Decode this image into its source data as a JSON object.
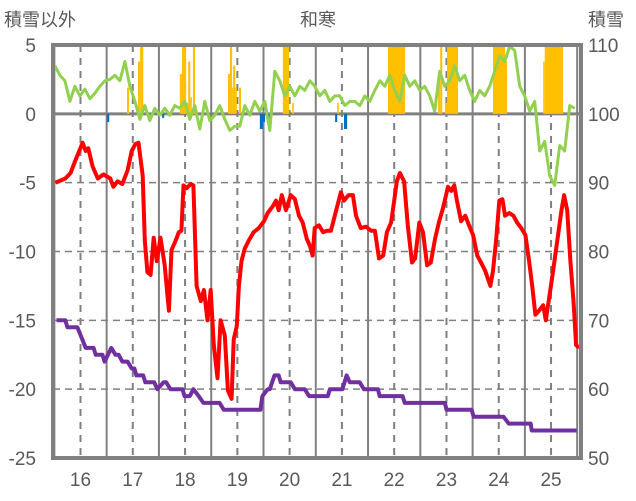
{
  "chart_data": {
    "type": "line",
    "title": "和寒",
    "ylabel_left": "積雪以外",
    "ylabel_right": "積雪",
    "xlim": [
      15.474,
      25.573
    ],
    "ylim_left": [
      -25,
      5
    ],
    "ylim_right": [
      50,
      110
    ],
    "x_ticks": [
      "16",
      "17",
      "18",
      "19",
      "20",
      "21",
      "22",
      "23",
      "24",
      "25"
    ],
    "x_tick_values": [
      16,
      17,
      18,
      19,
      20,
      21,
      22,
      23,
      24,
      25
    ],
    "y_ticks_left": [
      "5",
      "0",
      "-5",
      "-10",
      "-15",
      "-20",
      "-25"
    ],
    "y_tick_values_left": [
      5,
      0,
      -5,
      -10,
      -15,
      -20,
      -25
    ],
    "y_ticks_right": [
      "110",
      "100",
      "90",
      "80",
      "70",
      "60",
      "50"
    ],
    "y_tick_values_right": [
      110,
      100,
      90,
      80,
      70,
      60,
      50
    ],
    "grid": true,
    "colors": {
      "temp": "#FF0000",
      "wind": "#92D050",
      "snow_depth": "#7030A0",
      "precip_pos": "#FFC000",
      "precip_neg": "#0070C0",
      "axis": "#808080",
      "text": "#595959"
    },
    "series": [
      {
        "name": "red",
        "axis": "left",
        "points": [
          [
            15.52,
            -5.0
          ],
          [
            15.71,
            -4.7
          ],
          [
            15.81,
            -4.3
          ],
          [
            15.9,
            -3.4
          ],
          [
            16.04,
            -2.1
          ],
          [
            16.1,
            -2.7
          ],
          [
            16.15,
            -2.5
          ],
          [
            16.23,
            -3.8
          ],
          [
            16.33,
            -4.7
          ],
          [
            16.44,
            -4.4
          ],
          [
            16.57,
            -4.7
          ],
          [
            16.63,
            -5.3
          ],
          [
            16.71,
            -4.9
          ],
          [
            16.8,
            -5.1
          ],
          [
            16.9,
            -4.1
          ],
          [
            16.98,
            -2.7
          ],
          [
            17.05,
            -2.2
          ],
          [
            17.11,
            -2.1
          ],
          [
            17.19,
            -4.5
          ],
          [
            17.23,
            -9.2
          ],
          [
            17.28,
            -11.5
          ],
          [
            17.34,
            -11.7
          ],
          [
            17.4,
            -9.0
          ],
          [
            17.46,
            -10.7
          ],
          [
            17.53,
            -9.0
          ],
          [
            17.61,
            -11.0
          ],
          [
            17.69,
            -14.3
          ],
          [
            17.74,
            -9.9
          ],
          [
            17.82,
            -9.2
          ],
          [
            17.88,
            -8.6
          ],
          [
            17.93,
            -8.5
          ],
          [
            17.97,
            -5.2
          ],
          [
            18.03,
            -5.4
          ],
          [
            18.11,
            -5.1
          ],
          [
            18.16,
            -5.2
          ],
          [
            18.22,
            -12.5
          ],
          [
            18.3,
            -13.6
          ],
          [
            18.36,
            -12.8
          ],
          [
            18.43,
            -15.0
          ],
          [
            18.49,
            -12.8
          ],
          [
            18.55,
            -16.8
          ],
          [
            18.62,
            -19.2
          ],
          [
            18.68,
            -15.0
          ],
          [
            18.76,
            -16.1
          ],
          [
            18.82,
            -20.1
          ],
          [
            18.89,
            -20.7
          ],
          [
            18.93,
            -16.4
          ],
          [
            18.99,
            -15.4
          ],
          [
            19.03,
            -12.5
          ],
          [
            19.08,
            -10.7
          ],
          [
            19.14,
            -9.8
          ],
          [
            19.22,
            -9.2
          ],
          [
            19.31,
            -8.6
          ],
          [
            19.41,
            -8.3
          ],
          [
            19.51,
            -7.8
          ],
          [
            19.58,
            -7.2
          ],
          [
            19.68,
            -6.7
          ],
          [
            19.74,
            -6.3
          ],
          [
            19.79,
            -7.0
          ],
          [
            19.85,
            -5.9
          ],
          [
            19.93,
            -7.0
          ],
          [
            20.02,
            -5.9
          ],
          [
            20.1,
            -6.2
          ],
          [
            20.18,
            -7.4
          ],
          [
            20.25,
            -7.9
          ],
          [
            20.33,
            -9.1
          ],
          [
            20.39,
            -9.6
          ],
          [
            20.44,
            -10.3
          ],
          [
            20.48,
            -8.3
          ],
          [
            20.56,
            -8.1
          ],
          [
            20.64,
            -8.6
          ],
          [
            20.71,
            -8.5
          ],
          [
            20.79,
            -8.5
          ],
          [
            20.89,
            -7.0
          ],
          [
            20.98,
            -5.7
          ],
          [
            21.04,
            -6.3
          ],
          [
            21.13,
            -5.9
          ],
          [
            21.21,
            -5.9
          ],
          [
            21.27,
            -7.4
          ],
          [
            21.36,
            -8.3
          ],
          [
            21.46,
            -8.2
          ],
          [
            21.56,
            -8.5
          ],
          [
            21.63,
            -8.5
          ],
          [
            21.71,
            -10.5
          ],
          [
            21.79,
            -10.3
          ],
          [
            21.86,
            -8.6
          ],
          [
            21.94,
            -7.9
          ],
          [
            22.0,
            -6.3
          ],
          [
            22.05,
            -4.9
          ],
          [
            22.11,
            -4.3
          ],
          [
            22.19,
            -4.9
          ],
          [
            22.26,
            -8.1
          ],
          [
            22.34,
            -10.8
          ],
          [
            22.4,
            -10.5
          ],
          [
            22.48,
            -7.9
          ],
          [
            22.55,
            -8.6
          ],
          [
            22.63,
            -11.0
          ],
          [
            22.7,
            -10.8
          ],
          [
            22.78,
            -9.1
          ],
          [
            22.86,
            -7.8
          ],
          [
            22.93,
            -6.9
          ],
          [
            23.03,
            -5.3
          ],
          [
            23.09,
            -5.6
          ],
          [
            23.15,
            -5.2
          ],
          [
            23.2,
            -6.3
          ],
          [
            23.28,
            -7.8
          ],
          [
            23.36,
            -7.4
          ],
          [
            23.43,
            -8.1
          ],
          [
            23.51,
            -8.8
          ],
          [
            23.59,
            -10.3
          ],
          [
            23.66,
            -10.8
          ],
          [
            23.74,
            -11.4
          ],
          [
            23.84,
            -12.5
          ],
          [
            23.89,
            -11.4
          ],
          [
            23.95,
            -9.2
          ],
          [
            24.01,
            -6.3
          ],
          [
            24.07,
            -6.2
          ],
          [
            24.12,
            -7.4
          ],
          [
            24.2,
            -7.2
          ],
          [
            24.28,
            -7.4
          ],
          [
            24.35,
            -7.9
          ],
          [
            24.43,
            -8.3
          ],
          [
            24.51,
            -8.8
          ],
          [
            24.58,
            -10.7
          ],
          [
            24.64,
            -12.5
          ],
          [
            24.7,
            -14.6
          ],
          [
            24.77,
            -14.3
          ],
          [
            24.85,
            -13.9
          ],
          [
            24.9,
            -15.0
          ],
          [
            24.97,
            -13.2
          ],
          [
            25.04,
            -11.4
          ],
          [
            25.12,
            -9.2
          ],
          [
            25.2,
            -7.0
          ],
          [
            25.25,
            -5.9
          ],
          [
            25.31,
            -7.0
          ],
          [
            25.37,
            -10.7
          ],
          [
            25.43,
            -13.6
          ],
          [
            25.48,
            -16.8
          ],
          [
            25.54,
            -17.0
          ]
        ]
      },
      {
        "name": "green",
        "axis": "left",
        "x_start": 15.51,
        "x_step": 0.0956,
        "values": [
          3.5,
          2.8,
          2.4,
          0.9,
          2.0,
          1.3,
          1.8,
          1.1,
          1.5,
          2.0,
          2.4,
          2.5,
          2.8,
          2.4,
          3.8,
          2.0,
          0.9,
          -0.4,
          0.6,
          -0.5,
          0.4,
          -0.1,
          0.4,
          -0.1,
          0.6,
          0.4,
          0.9,
          -0.4,
          0.6,
          -1.1,
          0.9,
          -0.5,
          -0.1,
          0.6,
          -0.4,
          -1.2,
          -0.9,
          -0.9,
          0.6,
          -0.1,
          0.9,
          0.2,
          0.9,
          -1.2,
          3.1,
          2.4,
          1.3,
          2.0,
          1.3,
          2.0,
          1.7,
          2.4,
          2.0,
          1.3,
          1.7,
          0.9,
          1.3,
          1.3,
          0.6,
          0.9,
          0.9,
          0.6,
          1.3,
          0.9,
          1.7,
          2.4,
          2.0,
          2.8,
          1.7,
          0.9,
          2.8,
          2.0,
          2.4,
          1.7,
          2.0,
          1.3,
          0.2,
          3.1,
          2.0,
          2.4,
          3.5,
          2.4,
          2.8,
          1.7,
          0.9,
          1.7,
          1.3,
          2.0,
          3.1,
          4.2,
          3.8,
          4.9,
          4.6,
          2.0,
          1.3,
          0.2,
          0.9,
          -2.7,
          -2.0,
          -4.5,
          -5.2,
          -2.3,
          -2.7,
          0.6,
          0.4
        ]
      },
      {
        "name": "purple",
        "axis": "right",
        "points": [
          [
            15.54,
            70
          ],
          [
            15.71,
            70
          ],
          [
            15.75,
            69
          ],
          [
            15.94,
            69
          ],
          [
            16.1,
            66
          ],
          [
            16.25,
            66
          ],
          [
            16.29,
            65
          ],
          [
            16.42,
            65
          ],
          [
            16.46,
            64
          ],
          [
            16.59,
            66
          ],
          [
            16.67,
            65
          ],
          [
            16.73,
            65
          ],
          [
            16.8,
            64
          ],
          [
            16.9,
            64
          ],
          [
            16.98,
            63
          ],
          [
            17.03,
            63
          ],
          [
            17.07,
            62
          ],
          [
            17.2,
            62
          ],
          [
            17.24,
            61
          ],
          [
            17.41,
            61
          ],
          [
            17.47,
            60
          ],
          [
            17.59,
            61
          ],
          [
            17.64,
            61
          ],
          [
            17.72,
            60
          ],
          [
            17.95,
            60
          ],
          [
            17.99,
            59
          ],
          [
            18.09,
            59
          ],
          [
            18.16,
            60
          ],
          [
            18.26,
            59
          ],
          [
            18.35,
            58
          ],
          [
            18.66,
            58
          ],
          [
            18.74,
            57
          ],
          [
            19.44,
            57
          ],
          [
            19.48,
            59
          ],
          [
            19.58,
            60
          ],
          [
            19.62,
            60
          ],
          [
            19.71,
            62
          ],
          [
            19.79,
            62
          ],
          [
            19.83,
            61
          ],
          [
            20.02,
            61
          ],
          [
            20.1,
            60
          ],
          [
            20.29,
            60
          ],
          [
            20.37,
            59
          ],
          [
            20.73,
            59
          ],
          [
            20.77,
            60
          ],
          [
            21.01,
            60
          ],
          [
            21.09,
            62
          ],
          [
            21.15,
            61
          ],
          [
            21.34,
            61
          ],
          [
            21.42,
            60
          ],
          [
            21.69,
            60
          ],
          [
            21.72,
            59
          ],
          [
            22.16,
            59
          ],
          [
            22.2,
            58
          ],
          [
            22.97,
            58
          ],
          [
            23.0,
            57
          ],
          [
            23.48,
            57
          ],
          [
            23.52,
            56
          ],
          [
            24.09,
            56
          ],
          [
            24.19,
            55
          ],
          [
            24.61,
            55
          ],
          [
            24.63,
            54
          ],
          [
            25.49,
            54
          ]
        ]
      }
    ],
    "bars": [
      [
        16.89,
        16.93,
        1.9
      ],
      [
        17.1,
        17.14,
        3.8
      ],
      [
        17.14,
        17.2,
        6
      ],
      [
        17.9,
        17.94,
        2.9
      ],
      [
        17.94,
        18.02,
        6
      ],
      [
        18.02,
        18.06,
        0.8
      ],
      [
        18.06,
        18.1,
        3.8
      ],
      [
        18.1,
        18.13,
        1.2
      ],
      [
        18.15,
        18.19,
        6
      ],
      [
        18.82,
        18.86,
        2.9
      ],
      [
        18.86,
        18.9,
        6
      ],
      [
        18.9,
        18.92,
        1.9
      ],
      [
        18.92,
        18.96,
        3.5
      ],
      [
        18.96,
        18.99,
        1.9
      ],
      [
        19.03,
        19.07,
        1.9
      ],
      [
        19.87,
        19.99,
        6
      ],
      [
        20.05,
        20.08,
        0.8
      ],
      [
        20.91,
        20.94,
        0.8
      ],
      [
        21.88,
        22.21,
        6
      ],
      [
        22.84,
        22.88,
        2.9
      ],
      [
        22.88,
        22.92,
        6
      ],
      [
        22.97,
        23.01,
        0.8
      ],
      [
        23.01,
        23.22,
        6
      ],
      [
        23.89,
        24.12,
        6
      ],
      [
        24.12,
        24.16,
        3.8
      ],
      [
        24.85,
        24.88,
        3.8
      ],
      [
        24.88,
        25.23,
        6
      ],
      [
        16.51,
        16.55,
        -0.6
      ],
      [
        17.56,
        17.6,
        -0.3
      ],
      [
        19.43,
        19.49,
        -1.1
      ],
      [
        19.49,
        19.53,
        -0.6
      ],
      [
        19.59,
        19.62,
        -1.1
      ],
      [
        20.87,
        20.91,
        -0.6
      ],
      [
        21.04,
        21.1,
        -1.1
      ]
    ]
  }
}
